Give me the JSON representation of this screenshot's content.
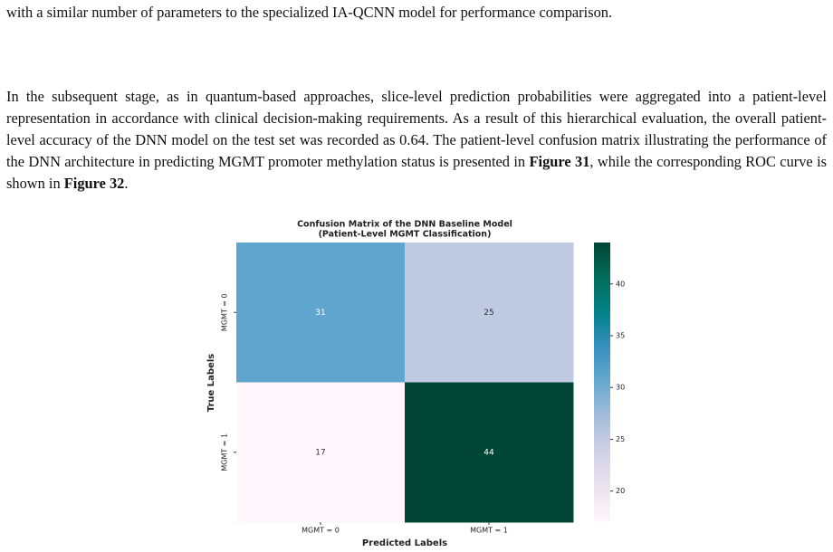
{
  "paragraphs": [
    {
      "runs": [
        {
          "text": "with a similar number of parameters to the specialized IA-QCNN model for performance comparison.",
          "bold": false
        }
      ]
    },
    {
      "runs": [
        {
          "text": "In the subsequent stage, as in quantum-based approaches, slice-level prediction probabilities were aggregated into a patient-level representation in accordance with clinical decision-making requirements. As a result of this hierarchical evaluation, the overall patient-level accuracy of the DNN model on the test set was recorded as 0.64. The patient-level confusion matrix illustrating the performance of the DNN architecture in predicting MGMT promoter methylation status is presented in ",
          "bold": false
        },
        {
          "text": "Figure 31",
          "bold": true
        },
        {
          "text": ", while the corresponding ROC curve is shown in ",
          "bold": false
        },
        {
          "text": "Figure 32",
          "bold": true
        },
        {
          "text": ".",
          "bold": false
        }
      ]
    }
  ],
  "chart_data": {
    "type": "heatmap",
    "title": [
      "Confusion Matrix of the DNN Baseline Model",
      "(Patient-Level MGMT Classification)"
    ],
    "x_label": "Predicted Labels",
    "y_label": "True Labels",
    "x_categories": [
      "MGMT = 0",
      "MGMT = 1"
    ],
    "y_categories": [
      "MGMT = 0",
      "MGMT = 1"
    ],
    "values": [
      [
        31,
        25
      ],
      [
        17,
        44
      ]
    ],
    "colormap": "PuBuGn",
    "clim": [
      17,
      44
    ],
    "cticks": [
      20,
      25,
      30,
      35,
      40
    ]
  }
}
